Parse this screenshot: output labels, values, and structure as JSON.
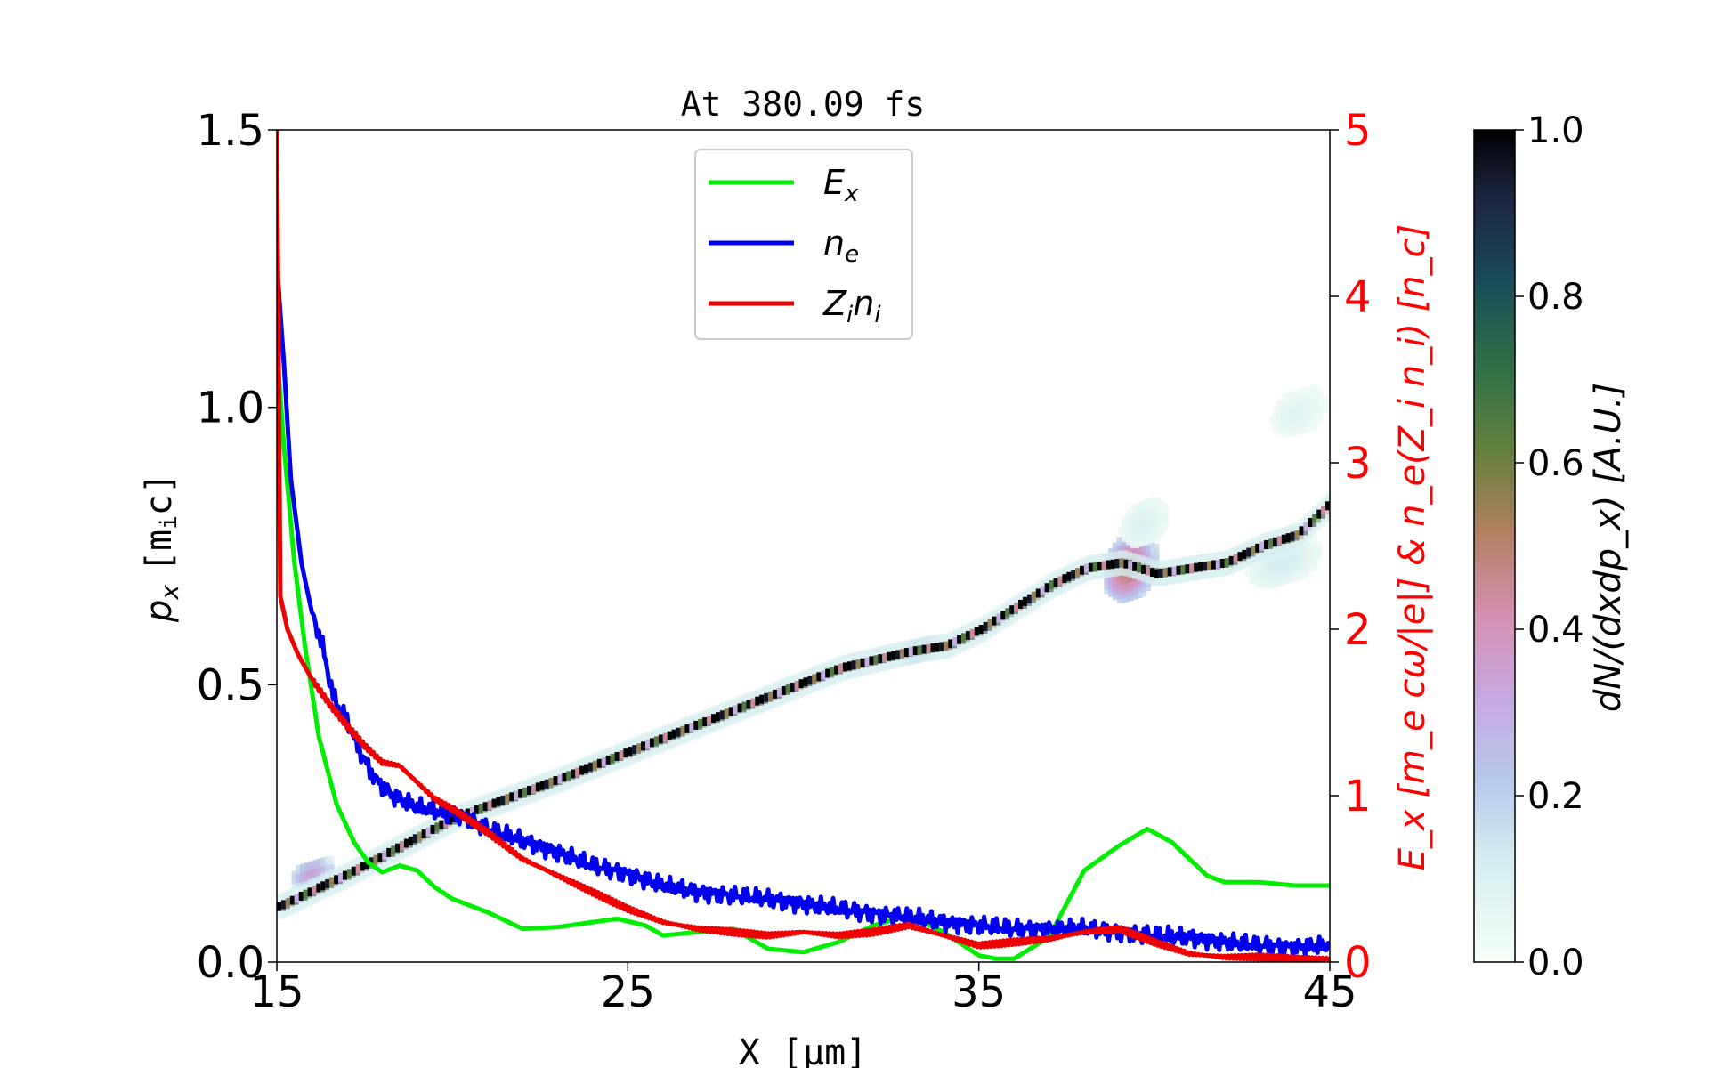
{
  "chart_data": {
    "type": "line",
    "title": "At 380.09 fs",
    "xlabel": "X [μm]",
    "ylabel_left": {
      "main": "p",
      "sub": "x",
      "unit": "[m",
      "unit_sub": "i",
      "unit_end": "c]"
    },
    "ylabel_right": {
      "text": "E_x [m_e cω/|e|] & n_e(Z_i n_i) [n_c]"
    },
    "colorbar_label": {
      "text": "dN/(dxdp_x) [A.U.]"
    },
    "xlim": [
      15,
      45
    ],
    "ylim_left": [
      0,
      1.5
    ],
    "ylim_right": [
      0,
      5
    ],
    "colorbar_lim": [
      0,
      1
    ],
    "x_ticks": [
      "15",
      "25",
      "35",
      "45"
    ],
    "y_ticks_left": [
      "0.0",
      "0.5",
      "1.0",
      "1.5"
    ],
    "y_ticks_right": [
      "0",
      "1",
      "2",
      "3",
      "4",
      "5"
    ],
    "colorbar_ticks": [
      "0.0",
      "0.2",
      "0.4",
      "0.6",
      "0.8",
      "1.0"
    ],
    "legend": {
      "position": "top-center",
      "entries": [
        {
          "label": "E",
          "sub": "x",
          "color": "#00ee00"
        },
        {
          "label": "n",
          "sub": "e",
          "color": "#0000ee"
        },
        {
          "label": "Z",
          "sub": "i",
          "label2": "n",
          "sub2": "i",
          "color": "#ee0000"
        }
      ]
    },
    "colors": {
      "Ex": "#00ee00",
      "ne": "#0000ee",
      "Zini": "#ee0000",
      "right_axis": "#ff0000"
    },
    "series": [
      {
        "name": "E_x",
        "axis": "right",
        "x": [
          15.0,
          15.2,
          15.5,
          15.8,
          16.2,
          16.7,
          17.2,
          17.6,
          18.0,
          18.5,
          19.0,
          19.5,
          20.0,
          21.0,
          22.0,
          23.0,
          24.0,
          24.7,
          25.5,
          26.0,
          27.0,
          28.0,
          29.0,
          30.0,
          31.0,
          32.0,
          33.0,
          34.0,
          35.0,
          35.5,
          36.0,
          37.0,
          38.0,
          39.0,
          39.8,
          40.5,
          41.5,
          42.0,
          43.0,
          44.0,
          45.0
        ],
        "y": [
          3.7,
          3.1,
          2.4,
          1.9,
          1.35,
          0.95,
          0.72,
          0.6,
          0.54,
          0.58,
          0.55,
          0.45,
          0.38,
          0.3,
          0.2,
          0.21,
          0.24,
          0.26,
          0.22,
          0.16,
          0.18,
          0.2,
          0.08,
          0.06,
          0.12,
          0.22,
          0.28,
          0.18,
          0.04,
          0.02,
          0.02,
          0.15,
          0.55,
          0.7,
          0.8,
          0.72,
          0.52,
          0.48,
          0.48,
          0.46,
          0.46
        ]
      },
      {
        "name": "n_e",
        "axis": "right",
        "x": [
          15.0,
          15.2,
          15.4,
          15.7,
          16.0,
          16.3,
          16.6,
          17.0,
          17.4,
          17.8,
          18.3,
          19.0,
          19.7,
          20.3,
          21.0,
          22.0,
          23.0,
          24.0,
          25.0,
          26.0,
          27.0,
          28.0,
          29.0,
          30.0,
          31.0,
          32.0,
          33.0,
          34.0,
          35.0,
          36.0,
          37.0,
          38.0,
          39.0,
          40.0,
          41.0,
          42.0,
          43.0,
          44.0,
          45.0
        ],
        "y": [
          4.2,
          3.6,
          2.9,
          2.4,
          2.1,
          1.9,
          1.6,
          1.45,
          1.25,
          1.1,
          1.0,
          0.93,
          0.9,
          0.88,
          0.8,
          0.73,
          0.66,
          0.58,
          0.53,
          0.46,
          0.42,
          0.4,
          0.38,
          0.35,
          0.32,
          0.29,
          0.27,
          0.24,
          0.22,
          0.2,
          0.2,
          0.2,
          0.18,
          0.16,
          0.15,
          0.12,
          0.1,
          0.09,
          0.1
        ]
      },
      {
        "name": "Z_i n_i",
        "axis": "right",
        "x": [
          15.0,
          15.03,
          15.1,
          15.3,
          15.6,
          16.0,
          16.5,
          17.0,
          17.5,
          18.0,
          18.5,
          19.0,
          19.5,
          20.0,
          21.0,
          22.0,
          23.0,
          24.0,
          25.0,
          26.0,
          27.0,
          28.0,
          29.0,
          30.0,
          31.0,
          32.0,
          33.0,
          34.0,
          35.0,
          36.0,
          37.0,
          38.0,
          39.0,
          40.0,
          41.0,
          42.0,
          43.0,
          44.0,
          45.0
        ],
        "y": [
          5.0,
          4.2,
          2.2,
          2.0,
          1.85,
          1.7,
          1.55,
          1.42,
          1.3,
          1.2,
          1.18,
          1.08,
          0.98,
          0.92,
          0.78,
          0.62,
          0.52,
          0.42,
          0.32,
          0.24,
          0.2,
          0.18,
          0.16,
          0.18,
          0.16,
          0.18,
          0.22,
          0.16,
          0.1,
          0.12,
          0.14,
          0.18,
          0.2,
          0.12,
          0.05,
          0.03,
          0.03,
          0.02,
          0.02
        ]
      }
    ],
    "phase_space": {
      "description_axis": "left",
      "main_band": {
        "x": [
          15.0,
          17.0,
          20.0,
          23.0,
          25.0,
          27.0,
          29.0,
          31.0,
          33.0,
          34.0,
          35.0,
          36.0,
          37.0,
          38.0,
          39.0,
          40.0,
          41.0,
          42.0,
          43.0,
          44.0,
          45.0
        ],
        "y": [
          0.1,
          0.16,
          0.26,
          0.33,
          0.38,
          0.43,
          0.48,
          0.53,
          0.56,
          0.57,
          0.6,
          0.64,
          0.68,
          0.71,
          0.72,
          0.7,
          0.71,
          0.72,
          0.75,
          0.77,
          0.83
        ]
      },
      "clouds": [
        {
          "x": 15.9,
          "y": 0.17,
          "dx": 1.2,
          "dy": 0.02,
          "density": 0.35
        },
        {
          "x": 33.2,
          "y": 0.57,
          "dx": 1.0,
          "dy": 0.02,
          "density": 0.3
        },
        {
          "x": 39.2,
          "y": 0.72,
          "dx": 1.5,
          "dy": 0.06,
          "density": 0.5
        },
        {
          "x": 39.6,
          "y": 0.8,
          "dx": 1.3,
          "dy": 0.04,
          "density": 0.1
        },
        {
          "x": 43.6,
          "y": 0.73,
          "dx": 2.0,
          "dy": 0.04,
          "density": 0.12
        },
        {
          "x": 44.0,
          "y": 1.0,
          "dx": 1.5,
          "dy": 0.04,
          "density": 0.08
        }
      ]
    }
  }
}
